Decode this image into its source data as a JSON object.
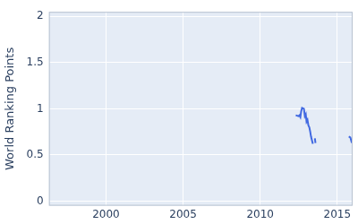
{
  "chart_data": {
    "type": "line",
    "y_label": "World Ranking Points",
    "x": [
      2012.31,
      2012.49,
      2012.55,
      2012.61,
      2012.66,
      2012.72,
      2012.84,
      2012.9,
      2012.96,
      2013.01,
      2013.07,
      2013.13,
      2013.19,
      2013.25,
      2013.3,
      2013.36,
      2013.42,
      2013.48,
      2013.55,
      2013.59,
      2014.5,
      2015.75,
      2015.85,
      2015.95
    ],
    "values": [
      0.93,
      0.92,
      0.93,
      0.91,
      0.97,
      1.01,
      1.0,
      0.92,
      0.94,
      0.86,
      0.88,
      0.82,
      0.8,
      0.75,
      0.7,
      0.66,
      0.62,
      null,
      0.68,
      0.63,
      null,
      0.7,
      0.69,
      0.63
    ],
    "color": "#4169e1",
    "xlim": [
      1996.3,
      2016.0
    ],
    "xticks": [
      2000,
      2005,
      2010,
      2015
    ],
    "ylim": [
      -0.05,
      2.05
    ],
    "yticks": [
      0,
      0.5,
      1,
      1.5,
      2
    ],
    "grid": true
  }
}
